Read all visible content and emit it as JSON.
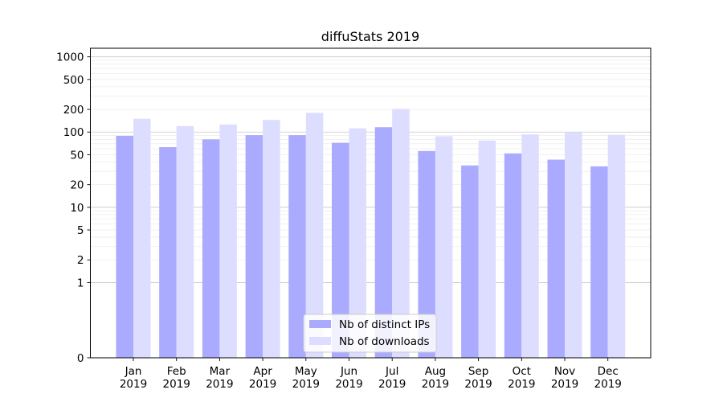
{
  "chart_data": {
    "type": "bar",
    "title": "diffuStats 2019",
    "xlabel": "",
    "ylabel": "",
    "scale": "symlog",
    "categories": [
      "Jan\n2019",
      "Feb\n2019",
      "Mar\n2019",
      "Apr\n2019",
      "May\n2019",
      "Jun\n2019",
      "Jul\n2019",
      "Aug\n2019",
      "Sep\n2019",
      "Oct\n2019",
      "Nov\n2019",
      "Dec\n2019"
    ],
    "series": [
      {
        "name": "Nb of distinct IPs",
        "color": "#aaaaff",
        "values": [
          89,
          63,
          80,
          91,
          91,
          72,
          116,
          56,
          36,
          52,
          43,
          35
        ]
      },
      {
        "name": "Nb of downloads",
        "color": "#ddddff",
        "values": [
          150,
          120,
          126,
          145,
          180,
          112,
          203,
          88,
          77,
          93,
          100,
          92
        ]
      }
    ],
    "yticks": [
      0,
      1,
      2,
      5,
      10,
      20,
      50,
      100,
      200,
      500,
      1000
    ],
    "ylim": [
      0,
      1300
    ],
    "grid": true,
    "legend": "bottom-center"
  }
}
